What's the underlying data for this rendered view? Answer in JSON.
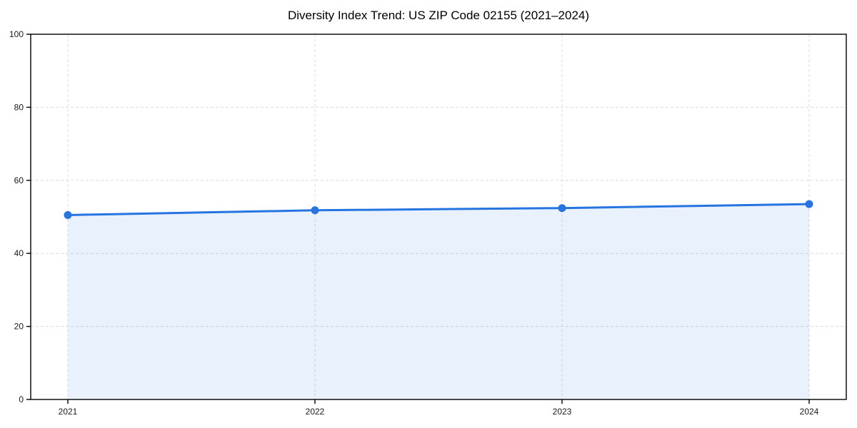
{
  "chart_data": {
    "type": "line",
    "title": "Diversity Index Trend: US ZIP Code 02155 (2021–2024)",
    "categories": [
      "2021",
      "2022",
      "2023",
      "2024"
    ],
    "values": [
      50.5,
      51.8,
      52.4,
      53.5
    ],
    "series_name": "Diversity Index",
    "xlabel": "",
    "ylabel": "",
    "ylim": [
      0,
      100
    ],
    "yticks": [
      0,
      20,
      40,
      60,
      80,
      100
    ],
    "grid": "dashed-both-directions",
    "legend": false,
    "area_fill_under_line": true,
    "marker": "circle",
    "colors": {
      "line": "#2673e2",
      "marker": "#2673e2",
      "fill": "#2673e2",
      "fill_opacity": 0.1,
      "grid": "#dcdcdc",
      "spine": "#000000",
      "tick_text": "#1a1a1a",
      "background": "#ffffff"
    }
  }
}
